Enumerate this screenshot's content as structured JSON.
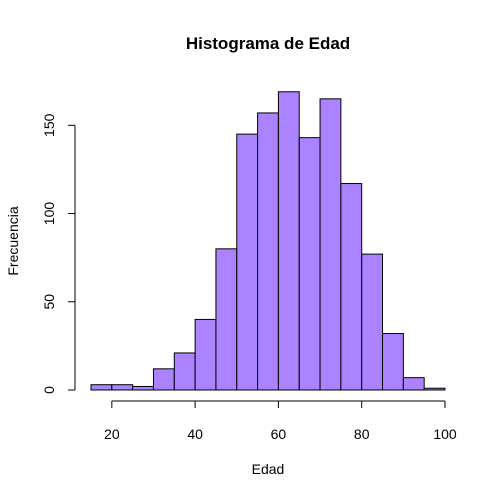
{
  "chart_data": {
    "type": "bar",
    "title": "Histograma de Edad",
    "xlabel": "Edad",
    "ylabel": "Frecuencia",
    "bar_color": "#AB82FF",
    "bin_edges": [
      15,
      20,
      25,
      30,
      35,
      40,
      45,
      50,
      55,
      60,
      65,
      70,
      75,
      80,
      85,
      90,
      95,
      100
    ],
    "values": [
      3,
      3,
      2,
      12,
      21,
      40,
      80,
      145,
      157,
      169,
      143,
      165,
      117,
      77,
      32,
      7,
      1
    ],
    "xlim": [
      15,
      100
    ],
    "ylim": [
      0,
      170
    ],
    "xticks": [
      20,
      40,
      60,
      80,
      100
    ],
    "yticks": [
      0,
      50,
      100,
      150
    ],
    "xtick_labels": [
      "20",
      "40",
      "60",
      "80",
      "100"
    ],
    "ytick_labels": [
      "0",
      "50",
      "100",
      "150"
    ]
  }
}
